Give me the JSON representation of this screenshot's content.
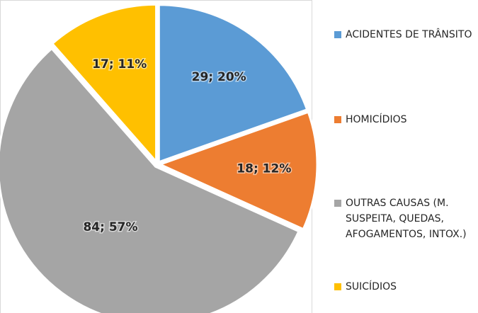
{
  "chart_data": {
    "type": "pie",
    "categories": [
      "ACIDENTES DE TRÂNSITO",
      "HOMICÍDIOS",
      "OUTRAS CAUSAS (M. SUSPEITA, QUEDAS, AFOGAMENTOS, INTOX.)",
      "SUICÍDIOS"
    ],
    "values": [
      29,
      18,
      84,
      17
    ],
    "value_labels": [
      "29; 20%",
      "18; 12%",
      "84; 57%",
      "17; 11%"
    ],
    "colors": [
      "#5b9bd5",
      "#ed7d31",
      "#a5a5a5",
      "#ffc000"
    ],
    "legend": "right"
  }
}
